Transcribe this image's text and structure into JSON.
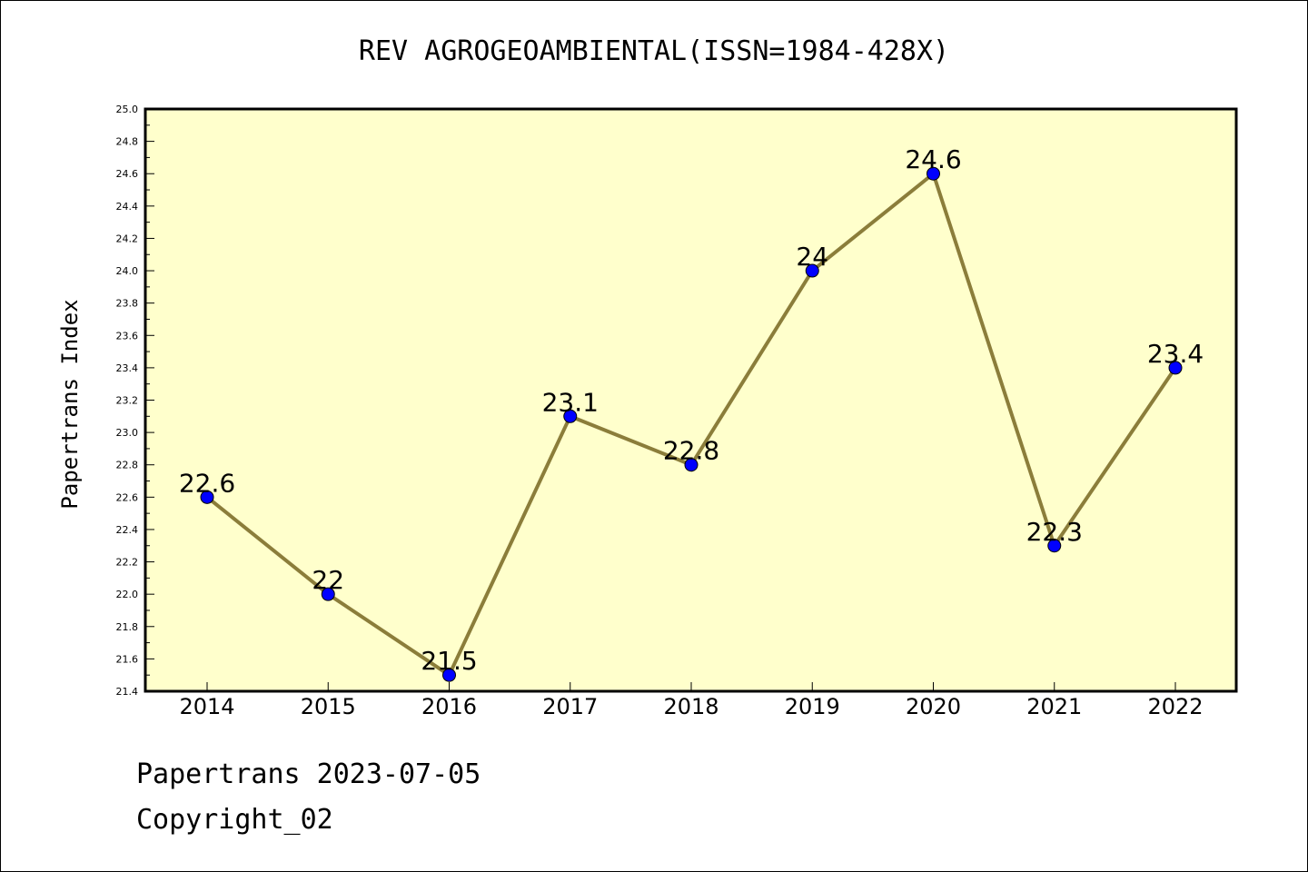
{
  "chart_data": {
    "type": "line",
    "title": "REV AGROGEOAMBIENTAL(ISSN=1984-428X)",
    "xlabel": "",
    "ylabel": "Papertrans Index",
    "categories": [
      "2014",
      "2015",
      "2016",
      "2017",
      "2018",
      "2019",
      "2020",
      "2021",
      "2022"
    ],
    "series": [
      {
        "values": [
          22.6,
          22.0,
          21.5,
          23.1,
          22.8,
          24.0,
          24.6,
          22.3,
          23.4
        ],
        "labels": [
          "22.6",
          "22",
          "21.5",
          "23.1",
          "22.8",
          "24",
          "24.6",
          "22.3",
          "23.4"
        ],
        "line_color": "#8b7d3a",
        "marker_color": "#0000ff"
      }
    ],
    "ylim": [
      21.4,
      25.0
    ],
    "yticks": [
      "21.4",
      "21.6",
      "21.8",
      "22.0",
      "22.2",
      "22.4",
      "22.6",
      "22.8",
      "23.0",
      "23.2",
      "23.4",
      "23.6",
      "23.8",
      "24.0",
      "24.2",
      "24.4",
      "24.6",
      "24.8",
      "25.0"
    ],
    "plot_background": "#ffffcc",
    "grid": false,
    "legend": "none"
  },
  "footer": {
    "line1": "Papertrans 2023-07-05",
    "line2": "Copyright_02"
  }
}
